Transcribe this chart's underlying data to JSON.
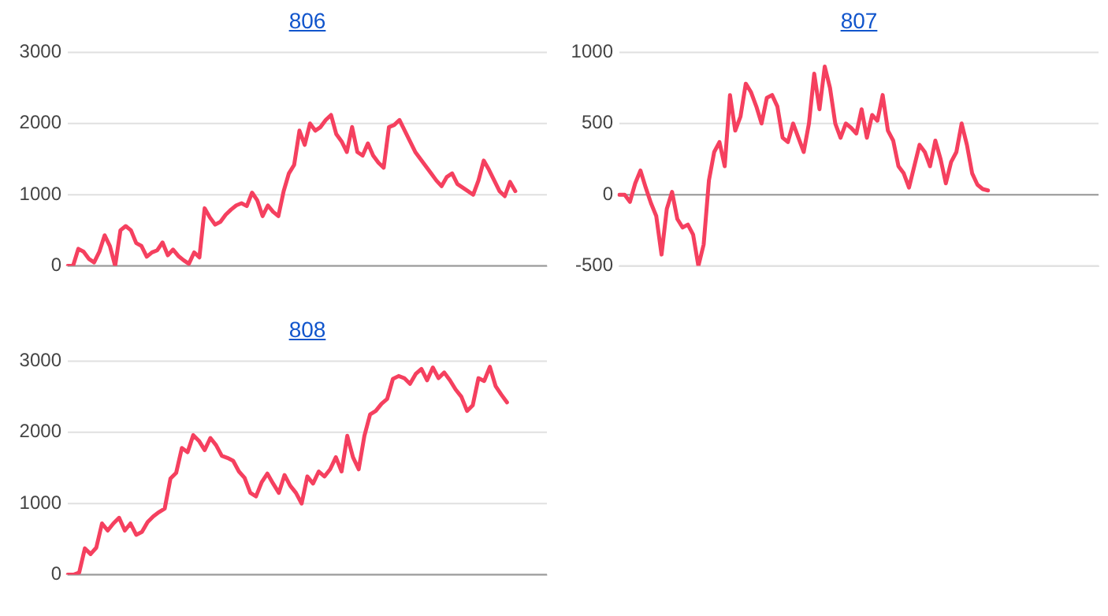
{
  "chart_data": [
    {
      "type": "line",
      "title": "806",
      "tick_labels": "y",
      "grid": "y",
      "marker": "none",
      "ylim": [
        0,
        3000
      ],
      "yticks": [
        0,
        1000,
        2000,
        3000
      ],
      "categories": [
        null,
        null,
        null,
        null,
        null,
        null,
        null,
        null,
        null,
        null,
        null,
        null,
        null,
        null,
        null,
        null,
        null,
        null,
        null,
        null,
        null,
        null,
        null,
        null,
        null,
        null,
        null,
        null,
        null,
        null,
        null,
        null,
        null,
        null,
        null,
        null,
        null,
        null,
        null,
        null,
        null,
        null,
        null,
        null,
        null,
        null,
        null,
        null,
        null,
        null,
        null,
        null,
        null,
        null,
        null,
        null,
        null,
        null,
        null,
        null,
        null,
        null,
        null,
        null,
        null,
        null,
        null,
        null,
        null,
        null,
        null,
        null,
        null,
        null,
        null,
        null,
        null,
        null,
        null,
        null,
        null,
        null,
        null,
        null,
        null,
        null,
        null,
        null,
        null,
        null,
        null,
        null
      ],
      "series": [
        {
          "color": "#f5405f",
          "values": [
            0,
            0,
            240,
            200,
            100,
            50,
            200,
            430,
            280,
            0,
            500,
            560,
            500,
            320,
            280,
            130,
            190,
            220,
            330,
            150,
            230,
            140,
            80,
            30,
            190,
            120,
            810,
            680,
            580,
            620,
            720,
            790,
            850,
            880,
            840,
            1030,
            920,
            700,
            850,
            760,
            700,
            1050,
            1300,
            1420,
            1900,
            1700,
            2000,
            1900,
            1950,
            2050,
            2120,
            1850,
            1750,
            1600,
            1950,
            1600,
            1550,
            1720,
            1550,
            1450,
            1380,
            1950,
            1980,
            2050,
            1900,
            1750,
            1600,
            1500,
            1400,
            1300,
            1200,
            1120,
            1250,
            1300,
            1150,
            1100,
            1050,
            1000,
            1200,
            1480,
            1350,
            1200,
            1050,
            980,
            1180,
            1050,
            null,
            null,
            null,
            null,
            null,
            null
          ]
        }
      ]
    },
    {
      "type": "line",
      "title": "807",
      "tick_labels": "y",
      "grid": "y",
      "marker": "none",
      "ylim": [
        -500,
        1000
      ],
      "yticks": [
        -500,
        0,
        500,
        1000
      ],
      "categories": [
        null,
        null,
        null,
        null,
        null,
        null,
        null,
        null,
        null,
        null,
        null,
        null,
        null,
        null,
        null,
        null,
        null,
        null,
        null,
        null,
        null,
        null,
        null,
        null,
        null,
        null,
        null,
        null,
        null,
        null,
        null,
        null,
        null,
        null,
        null,
        null,
        null,
        null,
        null,
        null,
        null,
        null,
        null,
        null,
        null,
        null,
        null,
        null,
        null,
        null,
        null,
        null,
        null,
        null,
        null,
        null,
        null,
        null,
        null,
        null,
        null,
        null,
        null,
        null,
        null,
        null,
        null,
        null,
        null,
        null,
        null,
        null,
        null,
        null,
        null,
        null,
        null,
        null,
        null,
        null,
        null,
        null,
        null,
        null,
        null,
        null,
        null,
        null,
        null,
        null,
        null,
        null
      ],
      "series": [
        {
          "color": "#f5405f",
          "values": [
            0,
            0,
            -50,
            80,
            170,
            50,
            -60,
            -150,
            -420,
            -100,
            20,
            -170,
            -230,
            -210,
            -280,
            -500,
            -350,
            100,
            300,
            370,
            200,
            700,
            450,
            550,
            780,
            720,
            620,
            500,
            680,
            700,
            620,
            400,
            370,
            500,
            400,
            300,
            500,
            850,
            600,
            900,
            750,
            500,
            400,
            500,
            470,
            430,
            600,
            400,
            560,
            520,
            700,
            450,
            380,
            200,
            150,
            50,
            200,
            350,
            300,
            200,
            380,
            250,
            80,
            230,
            300,
            500,
            350,
            150,
            70,
            40,
            30,
            null,
            null,
            null,
            null,
            null,
            null,
            null,
            null,
            null,
            null,
            null,
            null,
            null,
            null,
            null,
            null,
            null,
            null,
            null,
            null,
            null
          ]
        }
      ]
    },
    {
      "type": "line",
      "title": "808",
      "tick_labels": "y",
      "grid": "y",
      "marker": "none",
      "ylim": [
        0,
        3000
      ],
      "yticks": [
        0,
        1000,
        2000,
        3000
      ],
      "categories": [
        null,
        null,
        null,
        null,
        null,
        null,
        null,
        null,
        null,
        null,
        null,
        null,
        null,
        null,
        null,
        null,
        null,
        null,
        null,
        null,
        null,
        null,
        null,
        null,
        null,
        null,
        null,
        null,
        null,
        null,
        null,
        null,
        null,
        null,
        null,
        null,
        null,
        null,
        null,
        null,
        null,
        null,
        null,
        null,
        null,
        null,
        null,
        null,
        null,
        null,
        null,
        null,
        null,
        null,
        null,
        null,
        null,
        null,
        null,
        null,
        null,
        null,
        null,
        null,
        null,
        null,
        null,
        null,
        null,
        null,
        null,
        null,
        null,
        null,
        null,
        null,
        null,
        null,
        null,
        null,
        null,
        null,
        null,
        null,
        null
      ],
      "series": [
        {
          "color": "#f5405f",
          "values": [
            0,
            0,
            30,
            370,
            290,
            380,
            720,
            620,
            720,
            800,
            620,
            720,
            560,
            600,
            740,
            820,
            880,
            930,
            1350,
            1430,
            1780,
            1720,
            1960,
            1880,
            1750,
            1920,
            1820,
            1670,
            1640,
            1600,
            1450,
            1360,
            1150,
            1100,
            1300,
            1420,
            1280,
            1150,
            1400,
            1250,
            1150,
            1000,
            1380,
            1280,
            1450,
            1380,
            1480,
            1650,
            1450,
            1950,
            1650,
            1480,
            1950,
            2250,
            2300,
            2400,
            2470,
            2750,
            2790,
            2760,
            2680,
            2820,
            2890,
            2730,
            2910,
            2760,
            2840,
            2730,
            2600,
            2500,
            2300,
            2380,
            2760,
            2720,
            2920,
            2650,
            2530,
            2420,
            null,
            null,
            null,
            null,
            null,
            null,
            null
          ]
        }
      ]
    }
  ]
}
